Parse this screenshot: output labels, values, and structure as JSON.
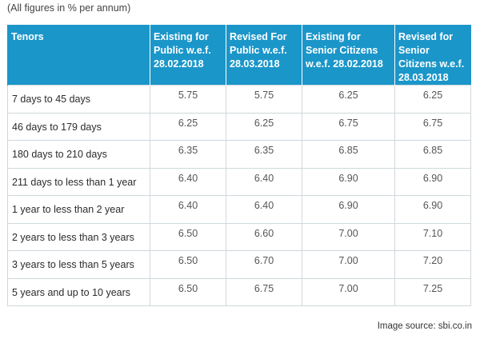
{
  "caption": "(All figures in % per annum)",
  "table": {
    "headers": [
      "Tenors",
      "Existing for Public w.e.f. 28.02.2018",
      "Revised For Public w.e.f. 28.03.2018",
      "Existing for Senior Citizens w.e.f. 28.02.2018",
      "Revised for Senior Citizens w.e.f. 28.03.2018"
    ],
    "rows": [
      [
        "7 days to 45 days",
        "5.75",
        "5.75",
        "6.25",
        "6.25"
      ],
      [
        "46 days to 179 days",
        "6.25",
        "6.25",
        "6.75",
        "6.75"
      ],
      [
        "180 days to 210 days",
        "6.35",
        "6.35",
        "6.85",
        "6.85"
      ],
      [
        "211 days to less than 1 year",
        "6.40",
        "6.40",
        "6.90",
        "6.90"
      ],
      [
        "1 year to less than 2 year",
        "6.40",
        "6.40",
        "6.90",
        "6.90"
      ],
      [
        "2 years to less than 3 years",
        "6.50",
        "6.60",
        "7.00",
        "7.10"
      ],
      [
        "3 years to less than 5 years",
        "6.50",
        "6.70",
        "7.00",
        "7.20"
      ],
      [
        "5 years and up to 10 years",
        "6.50",
        "6.75",
        "7.00",
        "7.25"
      ]
    ]
  },
  "source": "Image source: sbi.co.in",
  "colors": {
    "header_background": "#1b96c9",
    "header_text": "#ffffff",
    "cell_border": "#cfd8dc"
  }
}
